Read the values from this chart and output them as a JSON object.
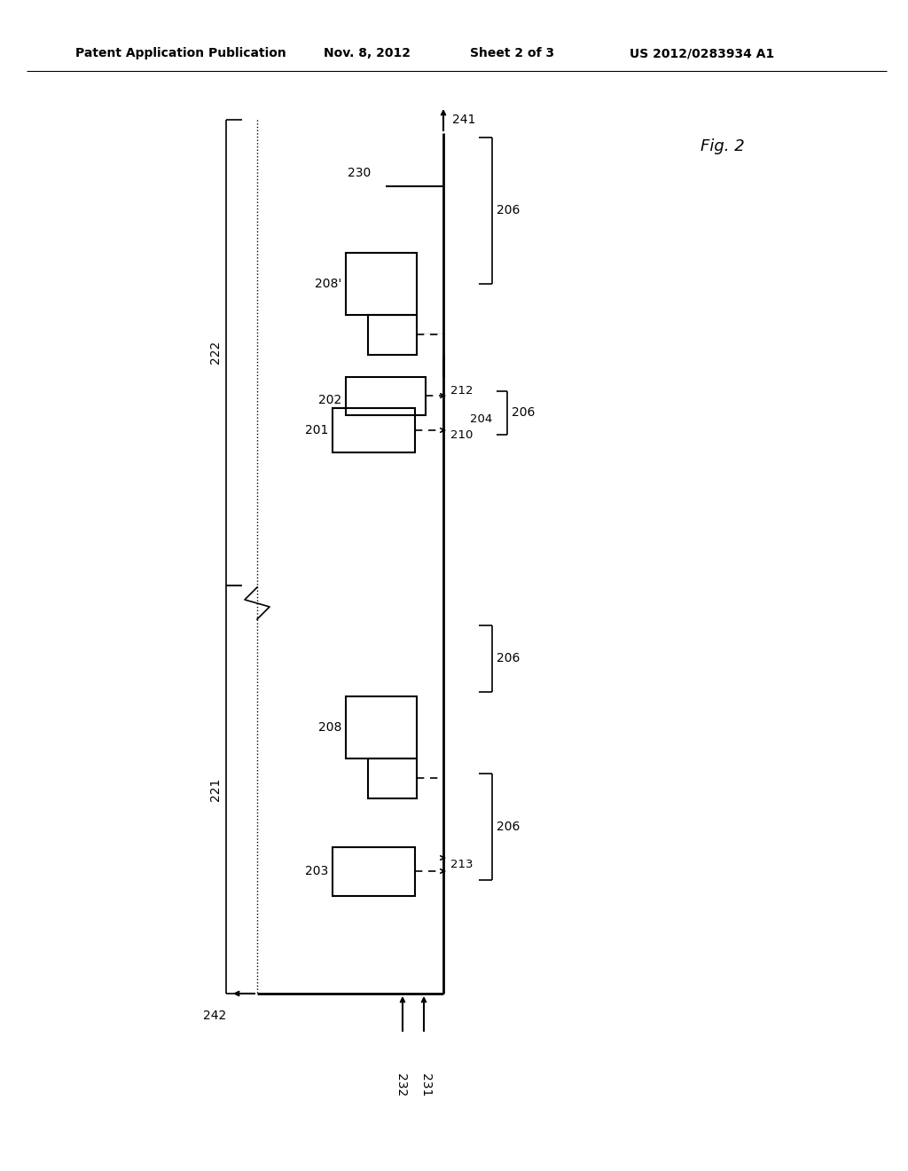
{
  "bg_color": "#ffffff",
  "header_text": "Patent Application Publication",
  "header_date": "Nov. 8, 2012",
  "header_sheet": "Sheet 2 of 3",
  "header_patent": "US 2012/0283934 A1",
  "fig_label": "Fig. 2",
  "text_color": "#000000",
  "line_color": "#000000"
}
